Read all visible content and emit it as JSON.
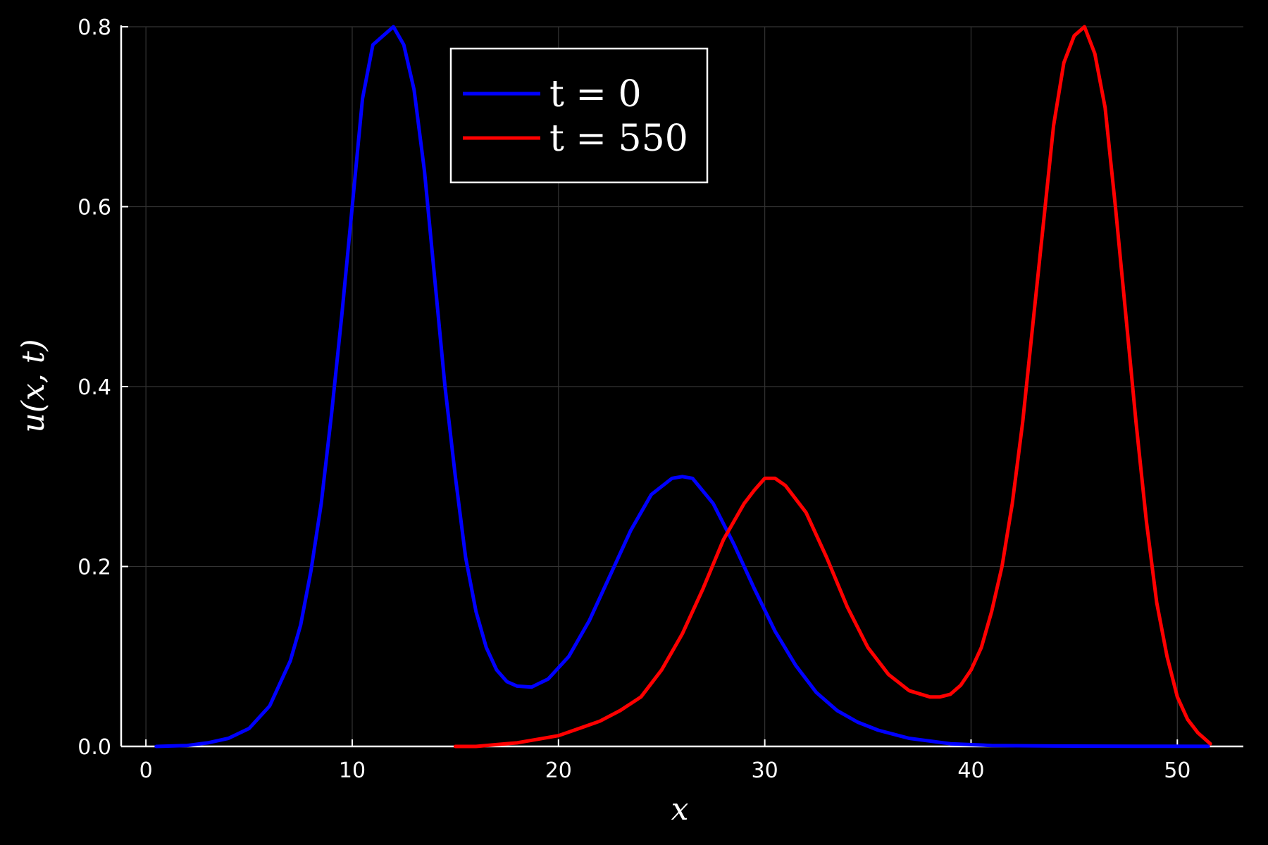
{
  "chart_data": {
    "type": "line",
    "xlabel": "x",
    "ylabel": "u(x, t)",
    "xlim": [
      -1.2,
      53.2
    ],
    "ylim": [
      0.0,
      0.8
    ],
    "xticks": [
      0,
      10,
      20,
      30,
      40,
      50
    ],
    "yticks": [
      0.0,
      0.2,
      0.4,
      0.6,
      0.8
    ],
    "xtick_labels": [
      "0",
      "10",
      "20",
      "30",
      "40",
      "50"
    ],
    "ytick_labels": [
      "0.0",
      "0.2",
      "0.4",
      "0.6",
      "0.8"
    ],
    "grid": true,
    "legend_position": "top-center",
    "background": "#000000",
    "series": [
      {
        "name": "t = 0",
        "color": "#0000ff",
        "x": [
          0.5,
          2,
          3,
          4,
          5,
          6,
          7,
          7.5,
          8,
          8.5,
          9,
          9.5,
          10,
          10.5,
          11,
          11.5,
          12,
          12.5,
          13,
          13.5,
          14,
          14.5,
          15,
          15.5,
          16,
          16.5,
          17,
          17.5,
          18,
          18.7,
          19.5,
          20.5,
          21.5,
          22.5,
          23.5,
          24.5,
          25.5,
          26,
          26.5,
          27.5,
          28.5,
          29.5,
          30.5,
          31.5,
          32.5,
          33.5,
          34.5,
          35.5,
          37,
          39,
          41,
          44,
          48,
          51.5
        ],
        "y": [
          0.0,
          0.001,
          0.004,
          0.009,
          0.02,
          0.045,
          0.095,
          0.135,
          0.195,
          0.27,
          0.37,
          0.48,
          0.6,
          0.72,
          0.78,
          0.79,
          0.8,
          0.78,
          0.73,
          0.64,
          0.52,
          0.4,
          0.3,
          0.21,
          0.15,
          0.11,
          0.085,
          0.072,
          0.067,
          0.066,
          0.075,
          0.1,
          0.14,
          0.19,
          0.24,
          0.28,
          0.298,
          0.3,
          0.298,
          0.27,
          0.225,
          0.175,
          0.128,
          0.09,
          0.06,
          0.04,
          0.027,
          0.018,
          0.009,
          0.003,
          0.001,
          0.0005,
          0.0002,
          0.0001
        ]
      },
      {
        "name": "t = 550",
        "color": "#ff0000",
        "x": [
          15,
          16,
          17,
          18,
          19,
          20,
          21,
          22,
          23,
          24,
          25,
          26,
          27,
          28,
          29,
          29.5,
          30,
          30.5,
          31,
          32,
          33,
          34,
          35,
          36,
          37,
          38,
          38.5,
          39,
          39.5,
          40,
          40.5,
          41,
          41.5,
          42,
          42.5,
          43,
          43.5,
          44,
          44.5,
          45,
          45.5,
          46,
          46.5,
          47,
          47.5,
          48,
          48.5,
          49,
          49.5,
          50,
          50.5,
          51,
          51.6
        ],
        "y": [
          0.0,
          0.0,
          0.002,
          0.004,
          0.008,
          0.012,
          0.02,
          0.028,
          0.04,
          0.055,
          0.085,
          0.125,
          0.175,
          0.23,
          0.27,
          0.285,
          0.298,
          0.298,
          0.29,
          0.26,
          0.21,
          0.155,
          0.11,
          0.08,
          0.062,
          0.055,
          0.055,
          0.058,
          0.068,
          0.085,
          0.11,
          0.15,
          0.2,
          0.27,
          0.36,
          0.47,
          0.58,
          0.69,
          0.76,
          0.79,
          0.8,
          0.77,
          0.71,
          0.6,
          0.48,
          0.36,
          0.25,
          0.16,
          0.1,
          0.055,
          0.03,
          0.015,
          0.003
        ]
      }
    ]
  }
}
